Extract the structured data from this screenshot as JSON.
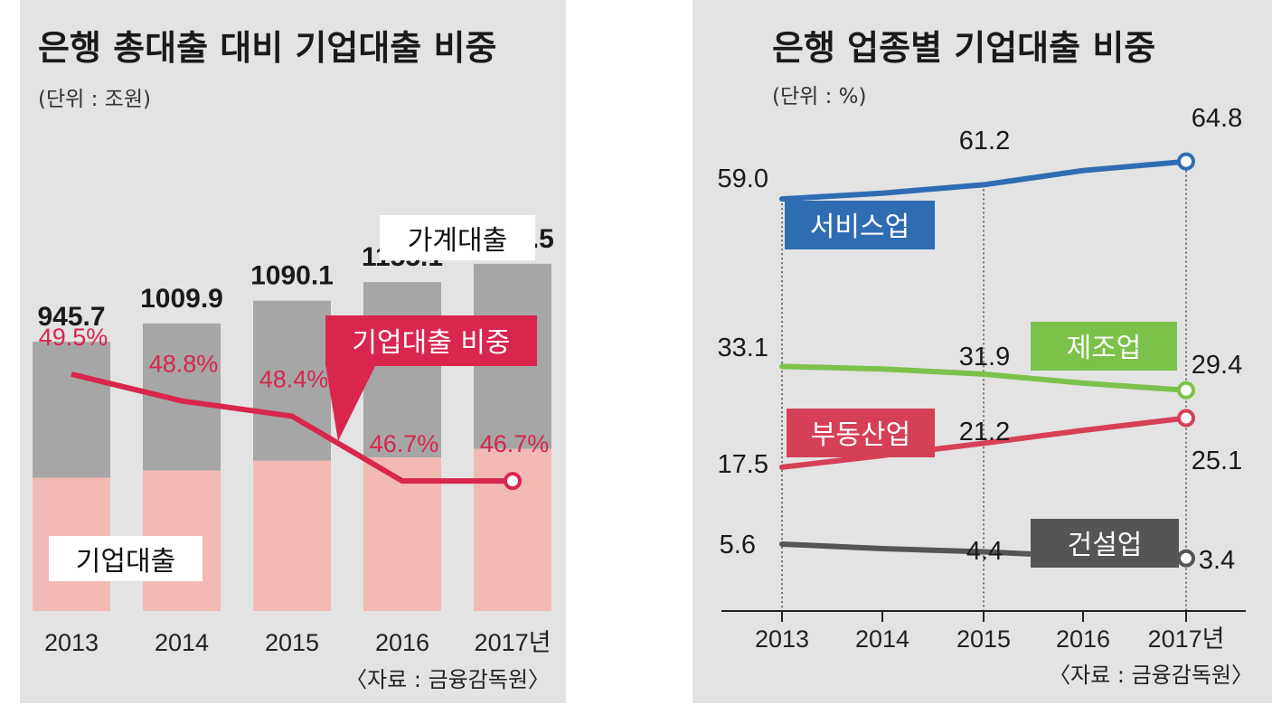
{
  "chart_data": [
    {
      "type": "bar",
      "title": "은행 총대출 대비 기업대출 비중",
      "unit": "(단위 : 조원)",
      "source": "〈자료 : 금융감독원〉",
      "categories": [
        "2013",
        "2014",
        "2015",
        "2016",
        "2017년"
      ],
      "total_labels": [
        "945.7",
        "1009.9",
        "1090.1",
        "1155.1",
        "1219.5"
      ],
      "total_values": [
        945.7,
        1009.9,
        1090.1,
        1155.1,
        1219.5
      ],
      "share_labels": [
        "49.5%",
        "48.8%",
        "48.4%",
        "46.7%",
        "46.7%"
      ],
      "share_values": [
        49.5,
        48.8,
        48.4,
        46.7,
        46.7
      ],
      "household_label": "가계대출",
      "corporate_label": "기업대출",
      "share_series_label": "기업대출 비중",
      "colors": {
        "household": "#a6a6a6",
        "corporate": "#f3b9b5",
        "share_line": "#d8264f",
        "panel": "#e3e3e3"
      }
    },
    {
      "type": "line",
      "title": "은행 업종별 기업대출 비중",
      "unit": "(단위 : %)",
      "source": "〈자료 : 금융감독원〉",
      "x": [
        "2013",
        "2014",
        "2015",
        "2016",
        "2017년"
      ],
      "series": [
        {
          "name": "서비스업",
          "color": "#2f6db3",
          "values": [
            59.0,
            59.9,
            61.2,
            63.4,
            64.8
          ],
          "labels": [
            "59.0",
            "",
            "61.2",
            "",
            "64.8"
          ]
        },
        {
          "name": "제조업",
          "color": "#7cc24a",
          "values": [
            33.1,
            32.7,
            31.9,
            30.5,
            29.4
          ],
          "labels": [
            "33.1",
            "",
            "31.9",
            "",
            "29.4"
          ]
        },
        {
          "name": "부동산업",
          "color": "#d64057",
          "values": [
            17.5,
            19.3,
            21.2,
            23.2,
            25.1
          ],
          "labels": [
            "17.5",
            "",
            "21.2",
            "",
            "25.1"
          ]
        },
        {
          "name": "건설업",
          "color": "#555555",
          "values": [
            5.6,
            4.9,
            4.4,
            3.7,
            3.4
          ],
          "labels": [
            "5.6",
            "",
            "4.4",
            "",
            "3.4"
          ]
        }
      ]
    }
  ]
}
